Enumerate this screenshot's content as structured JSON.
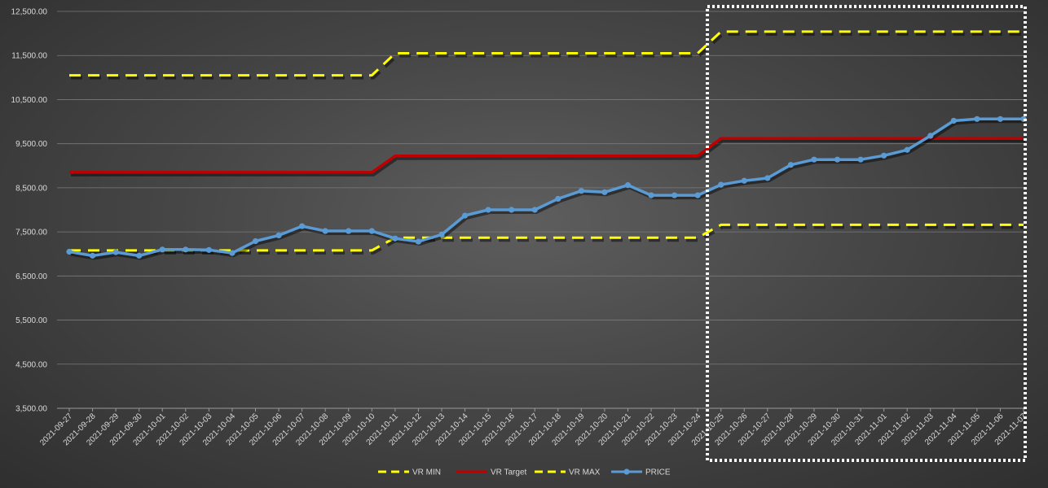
{
  "chart_data": {
    "type": "line",
    "title": "",
    "xlabel": "",
    "ylabel": "",
    "ylim": [
      3500,
      12500
    ],
    "y_ticks": [
      "12,500.00",
      "11,500.00",
      "10,500.00",
      "9,500.00",
      "8,500.00",
      "7,500.00",
      "6,500.00",
      "5,500.00",
      "4,500.00",
      "3,500.00"
    ],
    "y_tick_values": [
      12500,
      11500,
      10500,
      9500,
      8500,
      7500,
      6500,
      5500,
      4500,
      3500
    ],
    "grid": true,
    "legend_position": "bottom",
    "highlight_box": "dotted white rectangle from 2021-10-25 to 2021-11-07",
    "categories": [
      "2021-09-27",
      "2021-09-28",
      "2021-09-29",
      "2021-09-30",
      "2021-10-01",
      "2021-10-02",
      "2021-10-03",
      "2021-10-04",
      "2021-10-05",
      "2021-10-06",
      "2021-10-07",
      "2021-10-08",
      "2021-10-09",
      "2021-10-10",
      "2021-10-11",
      "2021-10-12",
      "2021-10-13",
      "2021-10-14",
      "2021-10-15",
      "2021-10-16",
      "2021-10-17",
      "2021-10-18",
      "2021-10-19",
      "2021-10-20",
      "2021-10-21",
      "2021-10-22",
      "2021-10-23",
      "2021-10-24",
      "2021-10-25",
      "2021-10-26",
      "2021-10-27",
      "2021-10-28",
      "2021-10-29",
      "2021-10-30",
      "2021-10-31",
      "2021-11-01",
      "2021-11-02",
      "2021-11-03",
      "2021-11-04",
      "2021-11-05",
      "2021-11-06",
      "2021-11-07"
    ],
    "series": [
      {
        "name": "VR MIN",
        "color": "#ffff00",
        "style": "dashed",
        "values": [
          7080,
          7080,
          7080,
          7080,
          7080,
          7080,
          7080,
          7080,
          7080,
          7080,
          7080,
          7080,
          7080,
          7080,
          7370,
          7370,
          7370,
          7370,
          7370,
          7370,
          7370,
          7370,
          7370,
          7370,
          7370,
          7370,
          7370,
          7370,
          7660,
          7660,
          7660,
          7660,
          7660,
          7660,
          7660,
          7660,
          7660,
          7660,
          7660,
          7660,
          7660,
          7660
        ]
      },
      {
        "name": "VR Target",
        "color": "#c00000",
        "style": "solid",
        "values": [
          8850,
          8850,
          8850,
          8850,
          8850,
          8850,
          8850,
          8850,
          8850,
          8850,
          8850,
          8850,
          8850,
          8850,
          9220,
          9220,
          9220,
          9220,
          9220,
          9220,
          9220,
          9220,
          9220,
          9220,
          9220,
          9220,
          9220,
          9220,
          9620,
          9620,
          9620,
          9620,
          9620,
          9620,
          9620,
          9620,
          9620,
          9620,
          9620,
          9620,
          9620,
          9620
        ]
      },
      {
        "name": "VR MAX",
        "color": "#ffff00",
        "style": "dashed",
        "values": [
          11050,
          11050,
          11050,
          11050,
          11050,
          11050,
          11050,
          11050,
          11050,
          11050,
          11050,
          11050,
          11050,
          11050,
          11550,
          11550,
          11550,
          11550,
          11550,
          11550,
          11550,
          11550,
          11550,
          11550,
          11550,
          11550,
          11550,
          11550,
          12040,
          12040,
          12040,
          12040,
          12040,
          12040,
          12040,
          12040,
          12040,
          12040,
          12040,
          12040,
          12040,
          12040
        ]
      },
      {
        "name": "PRICE",
        "color": "#5b9bd5",
        "style": "solid-markers",
        "values": [
          7050,
          6960,
          7040,
          6960,
          7100,
          7100,
          7090,
          7020,
          7290,
          7420,
          7630,
          7520,
          7520,
          7520,
          7350,
          7280,
          7440,
          7870,
          8000,
          8000,
          8000,
          8250,
          8430,
          8400,
          8560,
          8330,
          8330,
          8330,
          8570,
          8660,
          8720,
          9020,
          9140,
          9140,
          9140,
          9230,
          9360,
          9680,
          10020,
          10060,
          10060,
          10060
        ]
      }
    ]
  }
}
